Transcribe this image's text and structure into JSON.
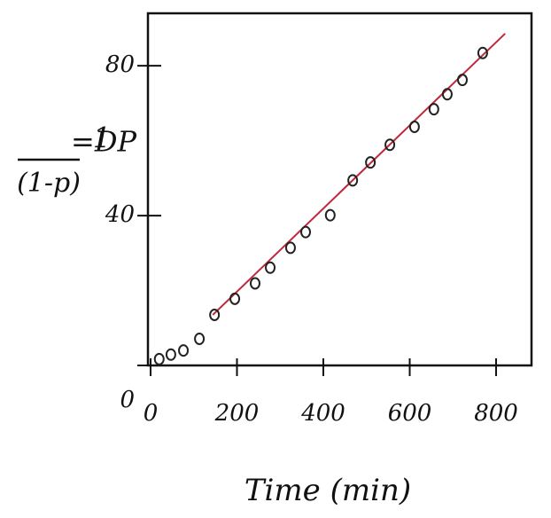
{
  "chart_data": {
    "type": "scatter",
    "x_label": "Time (min)",
    "y_label": {
      "numerator": "1",
      "denominator": "(1-p)",
      "suffix": "=DP"
    },
    "x": [
      20,
      47,
      76,
      113,
      148,
      195,
      242,
      277,
      324,
      359,
      416,
      468,
      509,
      554,
      611,
      656,
      687,
      722,
      769
    ],
    "values": [
      1.7,
      2.9,
      4.0,
      7.1,
      13.5,
      17.8,
      21.9,
      26.1,
      31.4,
      35.6,
      40.1,
      49.4,
      54.2,
      58.9,
      63.7,
      68.4,
      72.4,
      76.2,
      83.4
    ],
    "color": "#222222",
    "fit_line": {
      "x": [
        144,
        821
      ],
      "values": [
        13.5,
        88.6
      ],
      "color": "#c0283c"
    },
    "xlim": [
      0,
      882
    ],
    "ylim": [
      0,
      94
    ],
    "xticks": [
      0,
      200,
      400,
      600,
      800
    ],
    "yticks": [
      0,
      40,
      80
    ]
  }
}
